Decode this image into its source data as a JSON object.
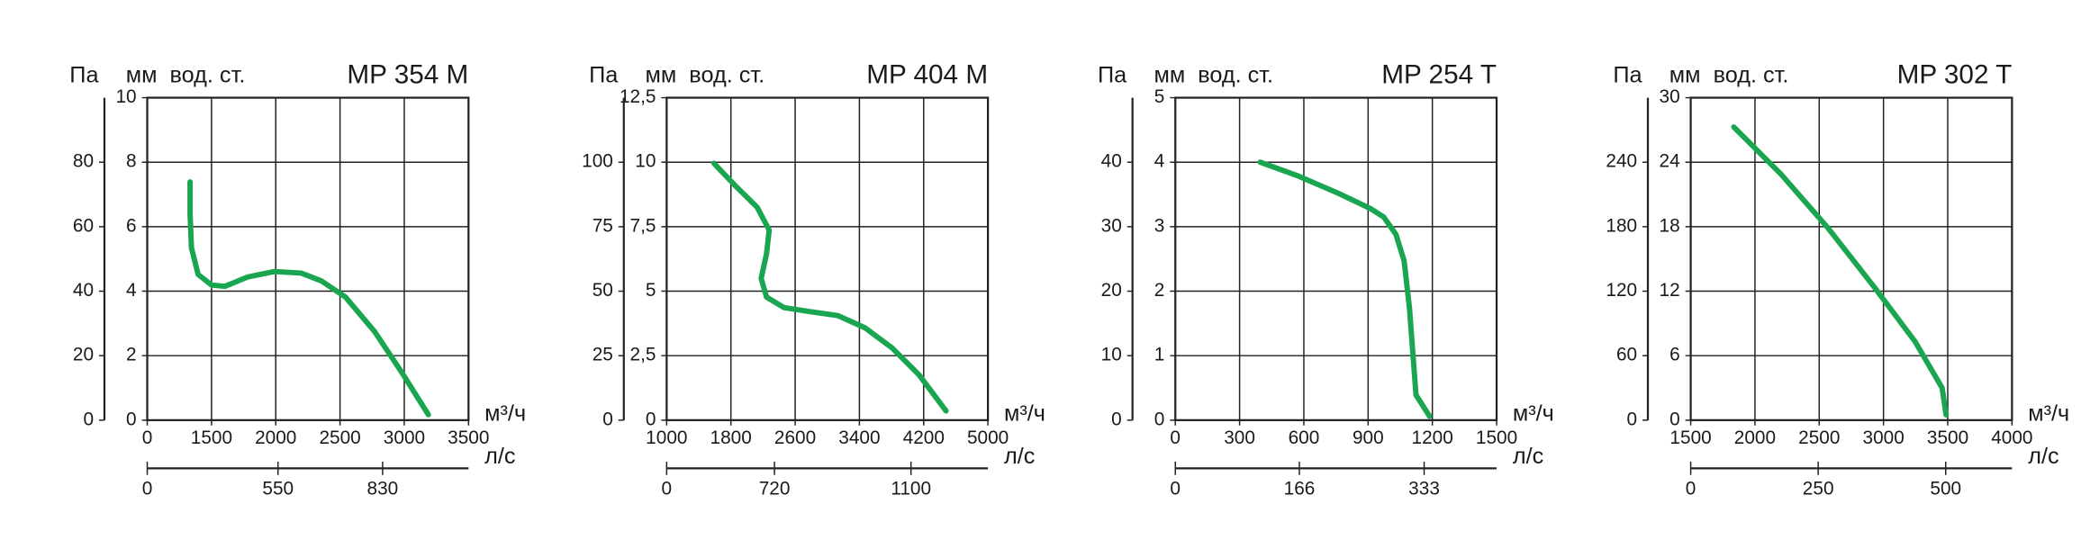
{
  "chart_data": [
    {
      "type": "line",
      "title": "MP 354 M",
      "y_label": "Па",
      "y2_label": "мм  вод. ст.",
      "x_label": "м³/ч",
      "x2_label": "л/с",
      "color": "#1aa551",
      "x": [
        1333,
        1333,
        1344,
        1396,
        1500,
        1604,
        1781,
        1990,
        2198,
        2354,
        2542,
        2771,
        2979,
        3188
      ],
      "values": [
        73.9,
        63.9,
        53.5,
        45.2,
        41.9,
        41.5,
        44.4,
        46.1,
        45.6,
        43.2,
        38.2,
        27.4,
        14.9,
        1.7
      ],
      "xlim": [
        1000,
        3500
      ],
      "xticks": [
        {
          "value": 1000,
          "label": "0"
        },
        1500,
        2000,
        2500,
        3000,
        3500
      ],
      "x2lim": [
        200,
        1060
      ],
      "x2ticks": [
        {
          "value": 200,
          "label": "0"
        },
        550,
        830
      ],
      "ylim": [
        0,
        100
      ],
      "yticks": [
        0,
        20,
        40,
        60,
        80
      ],
      "y2lim": [
        0,
        10
      ],
      "y2ticks": [
        0,
        2,
        4,
        6,
        8,
        10
      ]
    },
    {
      "type": "line",
      "title": "MP 404 M",
      "y_label": "Па",
      "y2_label": "мм  вод. ст.",
      "x_label": "м³/ч",
      "x2_label": "л/с",
      "color": "#1aa551",
      "x": [
        1588,
        1874,
        2126,
        2277,
        2243,
        2176,
        2243,
        2462,
        2798,
        3134,
        3470,
        3806,
        4142,
        4478
      ],
      "values": [
        99.6,
        90.3,
        82.5,
        73.7,
        64.4,
        55.0,
        47.7,
        43.6,
        42.0,
        40.5,
        35.8,
        28.0,
        17.6,
        3.6
      ],
      "xlim": [
        1000,
        5000
      ],
      "xticks": [
        1000,
        1800,
        2600,
        3400,
        4200,
        5000
      ],
      "x2lim": [
        420,
        1314
      ],
      "x2ticks": [
        {
          "value": 420,
          "label": "0"
        },
        720,
        1100
      ],
      "ylim": [
        0,
        125
      ],
      "yticks": [
        0,
        25,
        50,
        75,
        100
      ],
      "y2lim": [
        0,
        12.5
      ],
      "y2ticks": [
        0,
        {
          "value": 2.5,
          "label": "2,5"
        },
        5,
        {
          "value": 7.5,
          "label": "7,5"
        },
        10,
        {
          "value": 12.5,
          "label": "12,5"
        }
      ]
    },
    {
      "type": "line",
      "title": "MP 254 T",
      "y_label": "Па",
      "y2_label": "мм  вод. ст.",
      "x_label": "м³/ч",
      "x2_label": "л/с",
      "color": "#1aa551",
      "x": [
        396,
        578,
        766,
        911,
        973,
        1030,
        1068,
        1093,
        1112,
        1124,
        1187
      ],
      "values": [
        40.0,
        37.8,
        35.1,
        32.8,
        31.5,
        28.8,
        24.7,
        17.4,
        9.1,
        3.9,
        0.6
      ],
      "xlim": [
        0,
        1500
      ],
      "xticks": [
        0,
        300,
        600,
        900,
        1200,
        1500
      ],
      "x2lim": [
        0,
        430
      ],
      "x2ticks": [
        0,
        166,
        333
      ],
      "ylim": [
        0,
        50
      ],
      "yticks": [
        0,
        10,
        20,
        30,
        40
      ],
      "y2lim": [
        0,
        5
      ],
      "y2ticks": [
        0,
        1,
        2,
        3,
        4,
        5
      ]
    },
    {
      "type": "line",
      "title": "MP 302 T",
      "y_label": "Па",
      "y2_label": "мм  вод. ст.",
      "x_label": "м³/ч",
      "x2_label": "л/с",
      "color": "#1aa551",
      "x": [
        1835,
        2201,
        2567,
        2933,
        3247,
        3456,
        3487
      ],
      "values": [
        272.7,
        229,
        179,
        123,
        73,
        30,
        5
      ],
      "xlim": [
        1500,
        4000
      ],
      "xticks": [
        1500,
        2000,
        2500,
        3000,
        3500,
        4000
      ],
      "x2lim": [
        0,
        630
      ],
      "x2ticks": [
        0,
        250,
        500
      ],
      "ylim": [
        0,
        300
      ],
      "yticks": [
        0,
        60,
        120,
        180,
        240
      ],
      "y2lim": [
        0,
        30
      ],
      "y2ticks": [
        0,
        6,
        12,
        18,
        24,
        30
      ]
    }
  ]
}
